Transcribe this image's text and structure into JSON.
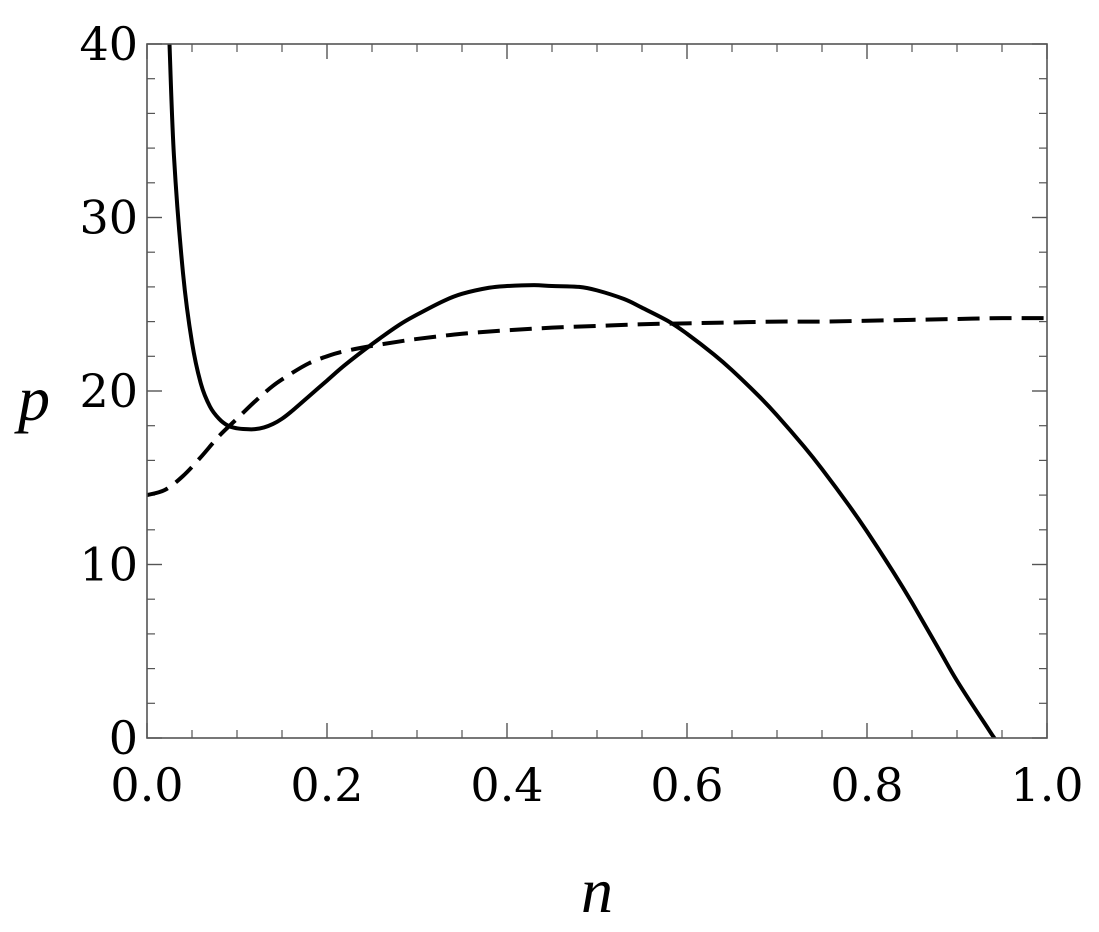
{
  "chart_data": {
    "type": "line",
    "title": "",
    "xlabel": "n",
    "ylabel": "p",
    "xlim": [
      0.0,
      1.0
    ],
    "ylim": [
      0,
      40
    ],
    "x_ticks": [
      0.0,
      0.2,
      0.4,
      0.6,
      0.8,
      1.0
    ],
    "x_tick_labels": [
      "0.0",
      "0.2",
      "0.4",
      "0.6",
      "0.8",
      "1.0"
    ],
    "x_minor_step": 0.05,
    "y_ticks": [
      0,
      10,
      20,
      30,
      40
    ],
    "y_tick_labels": [
      "0",
      "10",
      "20",
      "30",
      "40"
    ],
    "y_minor_step": 2,
    "grid": false,
    "legend": "none",
    "series": [
      {
        "style": "solid",
        "color": "#000000",
        "x": [
          0.025,
          0.03,
          0.04,
          0.05,
          0.06,
          0.07,
          0.08,
          0.09,
          0.1,
          0.11,
          0.12,
          0.13,
          0.14,
          0.15,
          0.16,
          0.18,
          0.2,
          0.22,
          0.25,
          0.28,
          0.3,
          0.33,
          0.35,
          0.38,
          0.4,
          0.43,
          0.45,
          0.48,
          0.5,
          0.53,
          0.55,
          0.58,
          0.6,
          0.63,
          0.65,
          0.68,
          0.7,
          0.73,
          0.75,
          0.78,
          0.8,
          0.83,
          0.85,
          0.88,
          0.9,
          0.93,
          0.95,
          0.98,
          1.0
        ],
        "y": [
          40,
          33.5,
          26.8,
          22.8,
          20.4,
          19.1,
          18.4,
          18.0,
          17.85,
          17.8,
          17.8,
          17.9,
          18.1,
          18.4,
          18.8,
          19.7,
          20.6,
          21.5,
          22.7,
          23.8,
          24.4,
          25.2,
          25.6,
          25.95,
          26.05,
          26.1,
          26.05,
          26.0,
          25.8,
          25.3,
          24.8,
          24.0,
          23.3,
          22.1,
          21.2,
          19.7,
          18.6,
          16.8,
          15.5,
          13.4,
          11.9,
          9.5,
          7.8,
          5.1,
          3.3,
          0.9,
          -0.6,
          -2.3,
          -3.5
        ]
      },
      {
        "style": "dashed",
        "color": "#000000",
        "x": [
          0.0,
          0.02,
          0.04,
          0.06,
          0.08,
          0.1,
          0.12,
          0.14,
          0.16,
          0.18,
          0.2,
          0.22,
          0.25,
          0.28,
          0.3,
          0.35,
          0.4,
          0.45,
          0.5,
          0.55,
          0.6,
          0.65,
          0.7,
          0.75,
          0.8,
          0.85,
          0.9,
          0.95,
          1.0
        ],
        "y": [
          14.0,
          14.3,
          15.1,
          16.2,
          17.4,
          18.4,
          19.4,
          20.3,
          21.0,
          21.6,
          22.0,
          22.3,
          22.6,
          22.85,
          23.0,
          23.3,
          23.5,
          23.65,
          23.75,
          23.85,
          23.9,
          23.95,
          24.0,
          24.0,
          24.05,
          24.1,
          24.15,
          24.2,
          24.2
        ]
      }
    ]
  }
}
